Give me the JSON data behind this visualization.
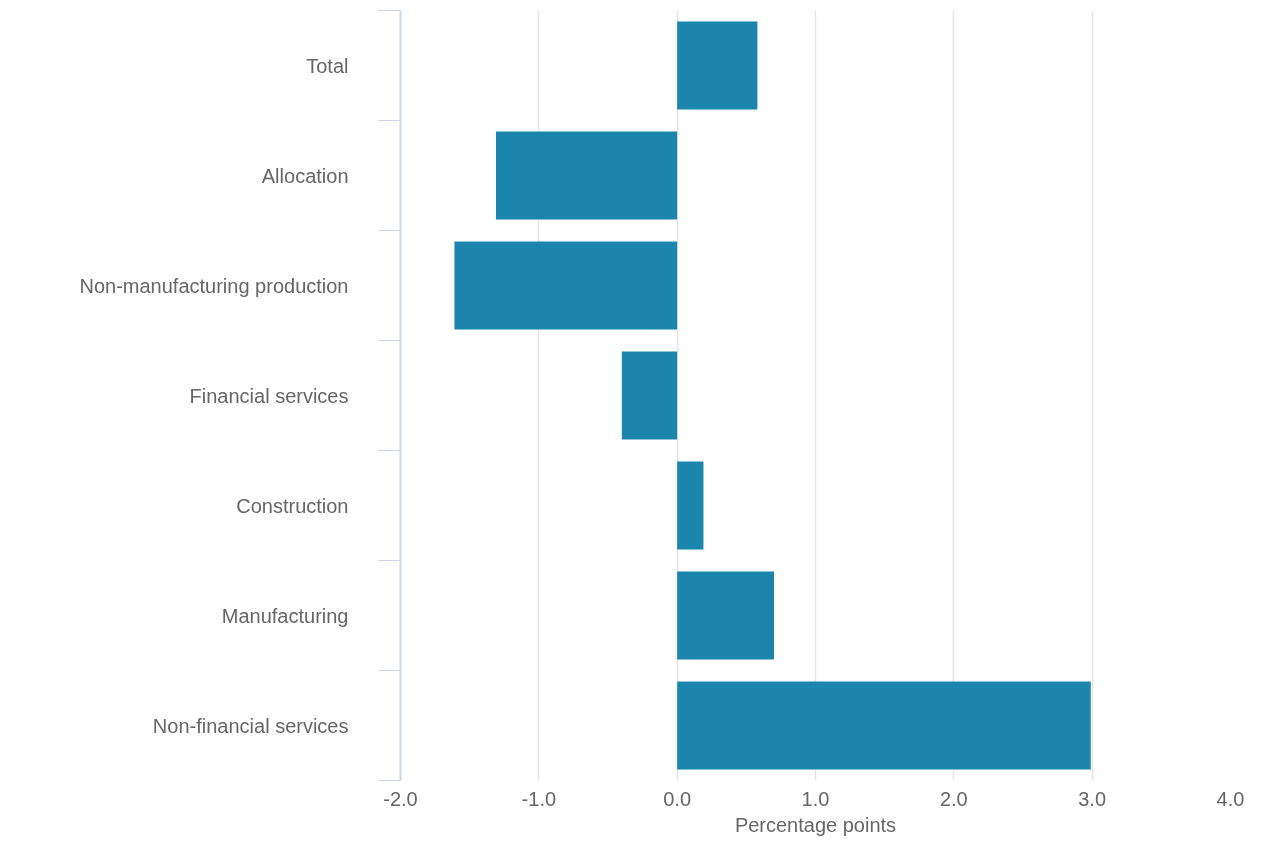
{
  "chart_data": {
    "type": "bar",
    "orientation": "horizontal",
    "categories": [
      "Total",
      "Allocation",
      "Non-manufacturing production",
      "Financial services",
      "Construction",
      "Manufacturing",
      "Non-financial services"
    ],
    "values": [
      0.58,
      -1.31,
      -1.61,
      -0.4,
      0.19,
      0.7,
      2.99
    ],
    "color": "#1b85ad",
    "xlabel": "Percentage points",
    "xlim": [
      -2,
      4
    ],
    "xticks": [
      {
        "value": -2,
        "label": "-2.0"
      },
      {
        "value": -1,
        "label": "-1.0"
      },
      {
        "value": 0,
        "label": "0.0"
      },
      {
        "value": 1,
        "label": "1.0"
      },
      {
        "value": 2,
        "label": "2.0"
      },
      {
        "value": 3,
        "label": "3.0"
      },
      {
        "value": 4,
        "label": "4.0"
      }
    ],
    "grid": "x"
  }
}
